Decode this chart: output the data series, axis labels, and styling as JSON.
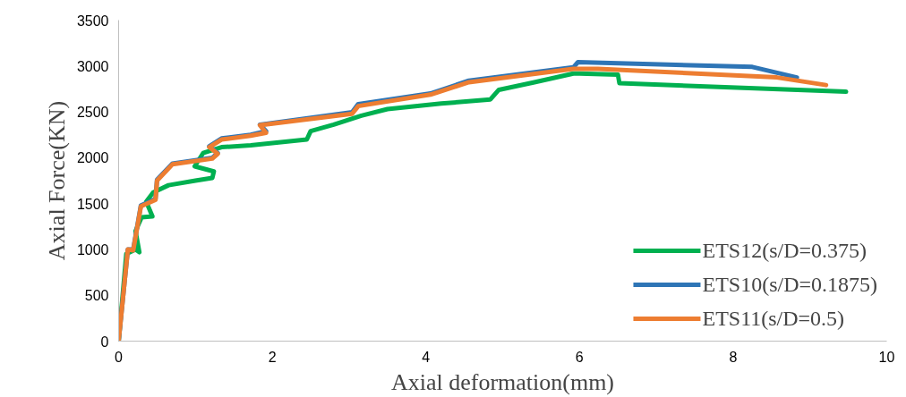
{
  "chart_data": {
    "type": "line",
    "xlabel": "Axial deformation(mm)",
    "ylabel": "Axial Force(KN)",
    "xlim": [
      0,
      10
    ],
    "ylim": [
      0,
      3500
    ],
    "xticks": [
      0,
      2,
      4,
      6,
      8,
      10
    ],
    "yticks": [
      0,
      500,
      1000,
      1500,
      2000,
      2500,
      3000,
      3500
    ],
    "grid": false,
    "legend": "bottom right",
    "marker": "none",
    "line_style": "solid",
    "series": [
      {
        "name": "ETS12(s/D=0.375)",
        "color": "#00b050",
        "x": [
          0,
          0.1,
          0.22,
          0.27,
          0.22,
          0.3,
          0.44,
          0.36,
          0.45,
          0.65,
          1.0,
          1.22,
          1.24,
          0.99,
          1.1,
          1.34,
          1.72,
          2.45,
          2.5,
          2.8,
          3.16,
          3.5,
          4.2,
          4.84,
          4.95,
          5.4,
          5.92,
          6.0,
          6.5,
          6.52,
          9.47
        ],
        "values": [
          0,
          950,
          1000,
          969,
          1200,
          1350,
          1360,
          1520,
          1620,
          1700,
          1750,
          1780,
          1850,
          1906,
          2050,
          2115,
          2135,
          2198,
          2290,
          2360,
          2458,
          2530,
          2590,
          2635,
          2740,
          2820,
          2917,
          2917,
          2906,
          2812,
          2719
        ]
      },
      {
        "name": "ETS10(s/D=0.1875)",
        "color": "#2e75b6",
        "x": [
          0,
          0.12,
          0.19,
          0.29,
          0.48,
          0.5,
          0.7,
          1.22,
          1.29,
          1.18,
          1.34,
          1.72,
          1.92,
          1.84,
          3.04,
          3.12,
          4.06,
          4.56,
          5.92,
          5.98,
          8.25,
          8.83
        ],
        "values": [
          0,
          1000,
          1000,
          1480,
          1550,
          1760,
          1935,
          2000,
          2050,
          2125,
          2210,
          2250,
          2290,
          2360,
          2495,
          2585,
          2700,
          2840,
          2985,
          3042,
          2990,
          2875
        ]
      },
      {
        "name": "ETS11(s/D=0.5)",
        "color": "#ed7d31",
        "x": [
          0,
          0.12,
          0.19,
          0.29,
          0.48,
          0.5,
          0.7,
          1.22,
          1.29,
          1.18,
          1.34,
          1.72,
          1.92,
          1.84,
          3.04,
          3.12,
          4.06,
          4.56,
          5.92,
          6.24,
          8.57,
          9.21
        ],
        "values": [
          0,
          1000,
          990,
          1470,
          1540,
          1750,
          1927,
          1990,
          2042,
          2115,
          2198,
          2240,
          2271,
          2354,
          2479,
          2563,
          2688,
          2823,
          2969,
          2969,
          2875,
          2792
        ]
      }
    ]
  }
}
